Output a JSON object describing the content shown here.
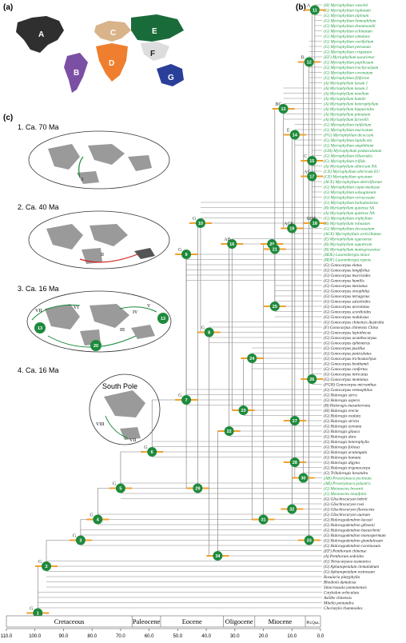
{
  "panels": {
    "a": "(a)",
    "b": "(b)",
    "c": "(c)"
  },
  "regions": [
    "A",
    "B",
    "C",
    "D",
    "E",
    "F",
    "G"
  ],
  "region_colors": {
    "A": "#2f2f2f",
    "B": "#7b4fa3",
    "C": "#d9b389",
    "D": "#ef7f2e",
    "E": "#1a6b3a",
    "F": "#dddddd",
    "G": "#2a3f9a"
  },
  "stages": [
    {
      "label": "1. Ca. 70 Ma",
      "dispersal": [
        "I"
      ]
    },
    {
      "label": "2. Ca. 40 Ma",
      "dispersal": [
        "II"
      ]
    },
    {
      "label": "3. Ca. 16 Ma",
      "dispersal": [
        "III",
        "IV",
        "V",
        "VI",
        "VII"
      ]
    },
    {
      "label": "4. Ca. 16 Ma",
      "dispersal": [
        "VIII",
        "VII"
      ],
      "note": "South Pole"
    }
  ],
  "map_numbers": [
    "13",
    "20",
    "13"
  ],
  "taxa": [
    {
      "n": "(H) Myriophyllum votschii",
      "g": 1
    },
    {
      "n": "(G) Myriophyllum lophatum",
      "g": 1
    },
    {
      "n": "(G) Myriophyllum alpinum",
      "g": 1
    },
    {
      "n": "(G) Myriophyllum limnophilum",
      "g": 1
    },
    {
      "n": "(G) Myriophyllum drummondii",
      "g": 1
    },
    {
      "n": "(G) Myriophyllum echinatum",
      "g": 1
    },
    {
      "n": "(G) Myriophyllum simulans",
      "g": 1
    },
    {
      "n": "(G) Myriophyllum variifolium",
      "g": 1
    },
    {
      "n": "(G) Myriophyllum petraeum",
      "g": 1
    },
    {
      "n": "(G) Myriophyllum crispatum",
      "g": 1
    },
    {
      "n": "(EF) Myriophyllum ussuriense",
      "g": 1
    },
    {
      "n": "(G) Myriophyllum papillosum",
      "g": 1
    },
    {
      "n": "(G) Myriophyllum trachycarpum",
      "g": 1
    },
    {
      "n": "(G) Myriophyllum coronatum",
      "g": 1
    },
    {
      "n": "(G) Myriophyllum filiforme",
      "g": 1
    },
    {
      "n": "(A) Myriophyllum laxum 1",
      "g": 1
    },
    {
      "n": "(A) Myriophyllum laxum 2",
      "g": 1
    },
    {
      "n": "(A) Myriophyllum tenellum",
      "g": 1
    },
    {
      "n": "(A) Myriophyllum humile",
      "g": 1
    },
    {
      "n": "(A) Myriophyllum heterophyllum",
      "g": 1
    },
    {
      "n": "(A) Myriophyllum hippuroides",
      "g": 1
    },
    {
      "n": "(A) Myriophyllum pinnatum",
      "g": 1
    },
    {
      "n": "(A) Myriophyllum farwellii",
      "g": 1
    },
    {
      "n": "(G) Myriophyllum latifolium",
      "g": 1
    },
    {
      "n": "(G) Myriophyllum muricatum",
      "g": 1
    },
    {
      "n": "(FG) Myriophyllum dicoccum",
      "g": 1
    },
    {
      "n": "(G) Myriophyllum lapidicola",
      "g": 1
    },
    {
      "n": "(G) Myriophyllum amphibium",
      "g": 1
    },
    {
      "n": "(GH) Myriophyllum pedunculatum",
      "g": 1
    },
    {
      "n": "(G) Myriophyllum tillaeoides",
      "g": 1
    },
    {
      "n": "(G) Myriophyllum trifida",
      "g": 1
    },
    {
      "n": "(A) Myriophyllum sibiricum NA",
      "g": 1
    },
    {
      "n": "(CE) Myriophyllum sibiricum EU",
      "g": 1
    },
    {
      "n": "(CE) Myriophyllum spicatum",
      "g": 1
    },
    {
      "n": "(ACE) Myriophyllum alterniflorum",
      "g": 1
    },
    {
      "n": "(G) Myriophyllum caput-medusae",
      "g": 1
    },
    {
      "n": "(G) Myriophyllum salsugineum",
      "g": 1
    },
    {
      "n": "(G) Myriophyllum verrucosum",
      "g": 1
    },
    {
      "n": "(G) Myriophyllum balladoniense",
      "g": 1
    },
    {
      "n": "(B) Myriophyllum quitense SA",
      "g": 1
    },
    {
      "n": "(A) Myriophyllum quitense NA",
      "g": 1
    },
    {
      "n": "(G) Myriophyllum triphyllum",
      "g": 1
    },
    {
      "n": "(B) Myriophyllum robustum",
      "g": 1
    },
    {
      "n": "(G) Myriophyllum decussatum",
      "g": 1
    },
    {
      "n": "(ACE) Myriophyllum verticillatum",
      "g": 1
    },
    {
      "n": "(E) Myriophyllum oguraense",
      "g": 1
    },
    {
      "n": "(B) Myriophyllum aquaticum",
      "g": 1
    },
    {
      "n": "(B) Myriophyllum mattogrossense",
      "g": 1
    },
    {
      "n": "(BDE) Laurembergia minor",
      "g": 1
    },
    {
      "n": "(BDF) Laurembergia repens",
      "g": 1
    },
    {
      "n": "(G) Gonocarpus elatus",
      "g": 0
    },
    {
      "n": "(G) Gonocarpus longifolius",
      "g": 0
    },
    {
      "n": "(G) Gonocarpus teucrioides",
      "g": 0
    },
    {
      "n": "(G) Gonocarpus humilis",
      "g": 0
    },
    {
      "n": "(G) Gonocarpus mezianus",
      "g": 0
    },
    {
      "n": "(G) Gonocarpus oreophilus",
      "g": 0
    },
    {
      "n": "(G) Gonocarpus tetragynus",
      "g": 0
    },
    {
      "n": "(G) Gonocarpus salsoloides",
      "g": 0
    },
    {
      "n": "(G) Gonocarpus urceolatus",
      "g": 0
    },
    {
      "n": "(G) Gonocarpus scordioides",
      "g": 0
    },
    {
      "n": "(G) Gonocarpus nodulosus",
      "g": 0
    },
    {
      "n": "(G) Gonocarpus chinensis Australia",
      "g": 0
    },
    {
      "n": "(F) Gonocarpus chinensis China",
      "g": 0
    },
    {
      "n": "(G) Gonocarpus leptothecus",
      "g": 0
    },
    {
      "n": "(G) Gonocarpus acanthocarpus",
      "g": 0
    },
    {
      "n": "(G) Gonocarpus ephemerus",
      "g": 0
    },
    {
      "n": "(G) Gonocarpus pusillus",
      "g": 0
    },
    {
      "n": "(G) Gonocarpus paniculatus",
      "g": 0
    },
    {
      "n": "(G) Gonocarpus trichostachyus",
      "g": 0
    },
    {
      "n": "(G) Gonocarpus benthamii",
      "g": 0
    },
    {
      "n": "(G) Gonocarpus confertus",
      "g": 0
    },
    {
      "n": "(G) Gonocarpus intricatus",
      "g": 0
    },
    {
      "n": "(G) Gonocarpus montanus",
      "g": 0
    },
    {
      "n": "(FGH) Gonocarpus micranthus",
      "g": 0
    },
    {
      "n": "(G) Gonocarpus eremophilus",
      "g": 0
    },
    {
      "n": "(G) Haloragis serra",
      "g": 0
    },
    {
      "n": "(G) Haloragis aspera",
      "g": 0
    },
    {
      "n": "(B) Haloragis masatierrana",
      "g": 0
    },
    {
      "n": "(H) Haloragis erecta",
      "g": 0
    },
    {
      "n": "(G) Haloragis exalata",
      "g": 0
    },
    {
      "n": "(G) Haloragis stricta",
      "g": 0
    },
    {
      "n": "(G) Haloragis eyreana",
      "g": 0
    },
    {
      "n": "(G) Haloragis glauca",
      "g": 0
    },
    {
      "n": "(G) Haloragis dura",
      "g": 0
    },
    {
      "n": "(G) Haloragis heterophylla",
      "g": 0
    },
    {
      "n": "(G) Haloragis foliosa",
      "g": 0
    },
    {
      "n": "(G) Haloragis acutangula",
      "g": 0
    },
    {
      "n": "(G) Haloragis hamata",
      "g": 0
    },
    {
      "n": "(G) Haloragis digyna",
      "g": 0
    },
    {
      "n": "(G) Haloragis trigonocarpa",
      "g": 0
    },
    {
      "n": "(G) Trihaloragis hexandra",
      "g": 0
    },
    {
      "n": "(AB) Proserpinaca pectinata",
      "g": 1
    },
    {
      "n": "(AB) Proserpinaca palustris",
      "g": 1
    },
    {
      "n": "(G) Meionectes brownii",
      "g": 1
    },
    {
      "n": "(G) Meionectes tenuifolia",
      "g": 1
    },
    {
      "n": "(G) Glischrocaryon behrii",
      "g": 0
    },
    {
      "n": "(G) Glischrocaryon roei",
      "g": 0
    },
    {
      "n": "(G) Glischrocaryon flavescens",
      "g": 0
    },
    {
      "n": "(G) Glischrocaryon aureum",
      "g": 0
    },
    {
      "n": "(G) Haloragodendron lucasii",
      "g": 0
    },
    {
      "n": "(G) Haloragodendron gibsonii",
      "g": 0
    },
    {
      "n": "(G) Haloragodendron baeuerlenii",
      "g": 0
    },
    {
      "n": "(G) Haloragodendron monospermum",
      "g": 0
    },
    {
      "n": "(G) Haloragodendron glandulosum",
      "g": 0
    },
    {
      "n": "(G) Haloragodendron racemosum",
      "g": 0
    },
    {
      "n": "(EF) Penthorum chinense",
      "g": 0
    },
    {
      "n": "(A) Penthorum sedoides",
      "g": 0
    },
    {
      "n": "(G) Tetracarpaea tasmanica",
      "g": 0
    },
    {
      "n": "(G) Aphanopetalum clematideum",
      "g": 0
    },
    {
      "n": "(G) Aphanopetalum resinosum",
      "g": 0
    },
    {
      "n": "Rosularia platyphylla",
      "g": 0
    },
    {
      "n": "Rhodiola dumulosa",
      "g": 0
    },
    {
      "n": "Sinocrassula yunnanensis",
      "g": 0
    },
    {
      "n": "Cotyledon orbiculata",
      "g": 0
    },
    {
      "n": "Astilbe chinensis",
      "g": 0
    },
    {
      "n": "Mitella pentandra",
      "g": 0
    },
    {
      "n": "Choristylis rhamnoides",
      "g": 0
    }
  ],
  "nodes": [
    {
      "id": "1",
      "t": 99,
      "r": 117
    },
    {
      "id": "2",
      "t": 96,
      "r": 108
    },
    {
      "id": "3",
      "t": 84,
      "r": 103
    },
    {
      "id": "4",
      "t": 78,
      "r": 99
    },
    {
      "id": "5",
      "t": 70,
      "r": 93
    },
    {
      "id": "6",
      "t": 59,
      "r": 86
    },
    {
      "id": "7",
      "t": 47,
      "r": 76
    },
    {
      "id": "8",
      "t": 39,
      "r": 63
    },
    {
      "id": "9",
      "t": 47,
      "r": 48
    },
    {
      "id": "10",
      "t": 42,
      "r": 42
    },
    {
      "id": "11",
      "t": 2,
      "r": 1
    },
    {
      "id": "12",
      "t": 4,
      "r": 11
    },
    {
      "id": "13",
      "t": 13,
      "r": 20
    },
    {
      "id": "14",
      "t": 9,
      "r": 25
    },
    {
      "id": "15",
      "t": 3,
      "r": 30
    },
    {
      "id": "16",
      "t": 31,
      "r": 46
    },
    {
      "id": "17",
      "t": 3,
      "r": 33
    },
    {
      "id": "18",
      "t": 2,
      "r": 42
    },
    {
      "id": "19",
      "t": 10,
      "r": 43
    },
    {
      "id": "20",
      "t": 17,
      "r": 46
    },
    {
      "id": "21",
      "t": 16,
      "r": 47
    },
    {
      "id": "22",
      "t": 32,
      "r": 82
    },
    {
      "id": "23",
      "t": 27,
      "r": 78
    },
    {
      "id": "24",
      "t": 24,
      "r": 68
    },
    {
      "id": "25",
      "t": 16,
      "r": 58
    },
    {
      "id": "26",
      "t": 3,
      "r": 72
    },
    {
      "id": "27",
      "t": 9,
      "r": 80
    },
    {
      "id": "28",
      "t": 9,
      "r": 88
    },
    {
      "id": "29",
      "t": 43,
      "r": 93
    },
    {
      "id": "30",
      "t": 6,
      "r": 91
    },
    {
      "id": "31",
      "t": 20,
      "r": 99
    },
    {
      "id": "32",
      "t": 10,
      "r": 97
    },
    {
      "id": "33",
      "t": 4,
      "r": 103
    },
    {
      "id": "34",
      "t": 36,
      "r": 106
    }
  ],
  "node_letters": [
    "G",
    "G",
    "G",
    "G",
    "G",
    "G",
    "G",
    "G",
    "G",
    "G",
    "A",
    "B",
    "BG",
    "E",
    "C",
    "AB",
    "AG",
    "BDE",
    "ACE"
  ],
  "period_labels": [
    "Cretaceous",
    "Paleocene",
    "Eocene",
    "Oligocene",
    "Miocene",
    "Pli.Qua."
  ],
  "period_bounds": [
    110,
    66,
    56,
    34,
    23,
    5.3,
    0
  ],
  "axis": {
    "min": 110,
    "max": 0,
    "ticks": [
      "110.0",
      "100.0",
      "90.0",
      "80.0",
      "70.0",
      "60.0",
      "50.0",
      "40.0",
      "30.0",
      "20.0",
      "10.0",
      "0.0"
    ]
  }
}
